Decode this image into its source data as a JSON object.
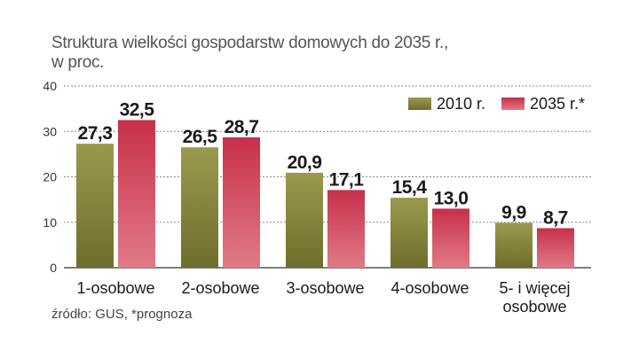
{
  "title": {
    "line1": "Struktura wielkości gospodarstw domowych do 2035 r.,",
    "line2": "w proc."
  },
  "source": "źródło: GUS, *prognoza",
  "colors": {
    "series_2010_top": "#9a9a4e",
    "series_2010_bottom": "#6e6e2c",
    "series_2035_top": "#c8304a",
    "series_2035_bottom": "#e07a88",
    "grid": "#888888",
    "axis": "#333333"
  },
  "chart_data": {
    "type": "bar",
    "categories": [
      "1-osobowe",
      "2-osobowe",
      "3-osobowe",
      "4-osobowe",
      "5- i więcej osobowe"
    ],
    "category_lines": [
      [
        "1-osobowe"
      ],
      [
        "2-osobowe"
      ],
      [
        "3-osobowe"
      ],
      [
        "4-osobowe"
      ],
      [
        "5- i więcej",
        "osobowe"
      ]
    ],
    "series": [
      {
        "name": "2010 r.",
        "values": [
          27.3,
          26.5,
          20.9,
          15.4,
          9.9
        ],
        "labels": [
          "27,3",
          "26,5",
          "20,9",
          "15,4",
          "9,9"
        ]
      },
      {
        "name": "2035 r.*",
        "values": [
          32.5,
          28.7,
          17.1,
          13.0,
          8.7
        ],
        "labels": [
          "32,5",
          "28,7",
          "17,1",
          "13,0",
          "8,7"
        ]
      }
    ],
    "yticks": [
      0,
      10,
      20,
      30,
      40
    ],
    "ylim": [
      0,
      40
    ],
    "grid": true,
    "legend": "top-right"
  }
}
